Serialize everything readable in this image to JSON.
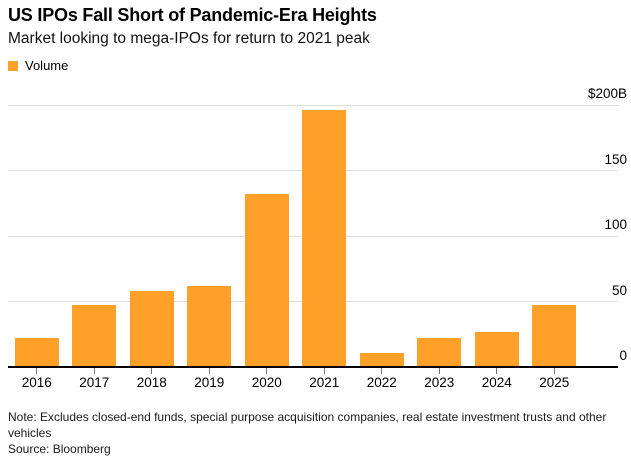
{
  "header": {
    "title": "US IPOs Fall Short of Pandemic-Era Heights",
    "subtitle": "Market looking to mega-IPOs for return to 2021 peak"
  },
  "legend": {
    "items": [
      {
        "label": "Volume",
        "color": "#FFA028"
      }
    ]
  },
  "chart_data": {
    "type": "bar",
    "title": "US IPOs Fall Short of Pandemic-Era Heights",
    "subtitle": "Market looking to mega-IPOs for return to 2021 peak",
    "categories": [
      "2016",
      "2017",
      "2018",
      "2019",
      "2020",
      "2021",
      "2022",
      "2023",
      "2024",
      "2025"
    ],
    "series": [
      {
        "name": "Volume",
        "values": [
          22,
          47,
          58,
          62,
          132,
          196,
          11,
          22,
          27,
          47
        ]
      }
    ],
    "unit": "billions USD",
    "xlabel": "",
    "ylabel": "Volume",
    "ylim": [
      0,
      200
    ],
    "y_ticks": [
      {
        "value": 0,
        "label": "0"
      },
      {
        "value": 50,
        "label": "50"
      },
      {
        "value": 100,
        "label": "100"
      },
      {
        "value": 150,
        "label": "150"
      },
      {
        "value": 200,
        "label": "$200B"
      }
    ],
    "grid": "horizontal",
    "legend_position": "top-left",
    "bar_color": "#FFA028",
    "gridline_color": "#dedede",
    "axis_line_color": "#000000"
  },
  "footer": {
    "note": "Note: Excludes closed-end funds, special purpose acquisition companies, real estate investment trusts and other vehicles",
    "source": "Source: Bloomberg"
  }
}
